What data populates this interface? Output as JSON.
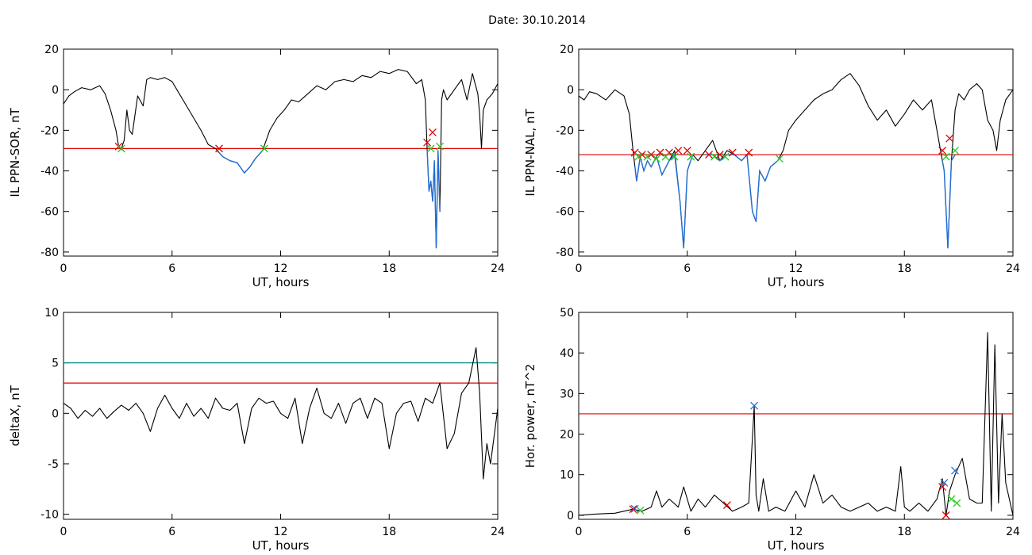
{
  "title": "Date:  30.10.2014",
  "colors": {
    "trace": "#000000",
    "threshold_red": "#e00000",
    "threshold_teal": "#008b8b",
    "segment_blue": "#1f6fd6",
    "marker_red": "#e00000",
    "marker_green": "#22cc22",
    "marker_blue": "#1f6fd6"
  },
  "chart_data": [
    {
      "type": "line",
      "xlabel": "UT, hours",
      "ylabel": "IL PPN-SOR, nT",
      "xlim": [
        0,
        24
      ],
      "ylim": [
        -82,
        20
      ],
      "xticks": [
        0,
        6,
        12,
        18,
        24
      ],
      "yticks": [
        -80,
        -60,
        -40,
        -20,
        0,
        20
      ],
      "x": [
        0,
        0.3,
        0.6,
        1,
        1.5,
        2,
        2.3,
        2.6,
        2.9,
        3.05,
        3.2,
        3.35,
        3.5,
        3.65,
        3.8,
        4.1,
        4.4,
        4.6,
        4.8,
        5.2,
        5.6,
        6,
        6.4,
        6.8,
        7.2,
        7.6,
        8,
        8.4,
        8.8,
        9.2,
        9.6,
        10,
        10.3,
        10.6,
        11,
        11.4,
        11.8,
        12.2,
        12.6,
        13,
        13.5,
        14,
        14.5,
        15,
        15.5,
        16,
        16.5,
        17,
        17.5,
        18,
        18.5,
        19,
        19.5,
        19.8,
        20,
        20.1,
        20.2,
        20.3,
        20.4,
        20.5,
        20.6,
        20.7,
        20.8,
        20.9,
        21,
        21.2,
        21.6,
        22,
        22.3,
        22.6,
        22.9,
        23,
        23.1,
        23.2,
        23.4,
        23.7,
        24
      ],
      "y": [
        -7,
        -3,
        -1,
        1,
        0,
        2,
        -2,
        -10,
        -20,
        -28,
        -29,
        -25,
        -10,
        -20,
        -22,
        -3,
        -8,
        5,
        6,
        5,
        6,
        4,
        -2,
        -8,
        -14,
        -20,
        -27,
        -29,
        -33,
        -35,
        -36,
        -41,
        -38,
        -34,
        -30,
        -20,
        -14,
        -10,
        -5,
        -6,
        -2,
        2,
        0,
        4,
        5,
        4,
        7,
        6,
        9,
        8,
        10,
        9,
        3,
        5,
        -5,
        -30,
        -50,
        -45,
        -55,
        -35,
        -78,
        -30,
        -60,
        -5,
        0,
        -5,
        0,
        5,
        -5,
        8,
        -2,
        -12,
        -29,
        -10,
        -5,
        -2,
        3
      ],
      "threshold": -29,
      "markers": [
        {
          "x": 3.05,
          "y": -28,
          "color": "red"
        },
        {
          "x": 3.2,
          "y": -29,
          "color": "green"
        },
        {
          "x": 8.6,
          "y": -29,
          "color": "red"
        },
        {
          "x": 11.1,
          "y": -29,
          "color": "green"
        },
        {
          "x": 20.1,
          "y": -26,
          "color": "red"
        },
        {
          "x": 20.4,
          "y": -21,
          "color": "red"
        },
        {
          "x": 20.3,
          "y": -29,
          "color": "green"
        },
        {
          "x": 20.8,
          "y": -28,
          "color": "green"
        }
      ],
      "blue_segments": [
        [
          8.6,
          11.1
        ],
        [
          20.1,
          20.8
        ]
      ]
    },
    {
      "type": "line",
      "xlabel": "UT, hours",
      "ylabel": "IL PPN-NAL, nT",
      "xlim": [
        0,
        24
      ],
      "ylim": [
        -82,
        20
      ],
      "xticks": [
        0,
        6,
        12,
        18,
        24
      ],
      "yticks": [
        -80,
        -60,
        -40,
        -20,
        0,
        20
      ],
      "x": [
        0,
        0.3,
        0.6,
        1,
        1.5,
        2,
        2.5,
        2.8,
        3,
        3.2,
        3.4,
        3.6,
        3.8,
        4,
        4.3,
        4.6,
        5,
        5.3,
        5.6,
        5.8,
        6,
        6.3,
        6.6,
        7,
        7.4,
        7.8,
        8.2,
        8.6,
        9,
        9.3,
        9.6,
        9.8,
        10,
        10.3,
        10.6,
        11,
        11.3,
        11.6,
        12,
        12.5,
        13,
        13.5,
        14,
        14.5,
        15,
        15.5,
        16,
        16.5,
        17,
        17.5,
        18,
        18.5,
        19,
        19.5,
        20,
        20.2,
        20.4,
        20.6,
        20.8,
        21,
        21.3,
        21.6,
        22,
        22.3,
        22.6,
        22.9,
        23.1,
        23.3,
        23.6,
        24
      ],
      "y": [
        -3,
        -5,
        -1,
        -2,
        -5,
        0,
        -3,
        -12,
        -30,
        -45,
        -33,
        -40,
        -35,
        -38,
        -33,
        -42,
        -35,
        -30,
        -55,
        -78,
        -40,
        -32,
        -35,
        -30,
        -25,
        -35,
        -30,
        -32,
        -35,
        -32,
        -60,
        -65,
        -40,
        -45,
        -38,
        -35,
        -30,
        -20,
        -15,
        -10,
        -5,
        -2,
        0,
        5,
        8,
        2,
        -8,
        -15,
        -10,
        -18,
        -12,
        -5,
        -10,
        -5,
        -30,
        -40,
        -78,
        -35,
        -10,
        -2,
        -5,
        0,
        3,
        0,
        -15,
        -20,
        -30,
        -15,
        -5,
        0
      ],
      "threshold": -32,
      "markers": [
        {
          "x": 3.1,
          "y": -31,
          "color": "red"
        },
        {
          "x": 3.5,
          "y": -32,
          "color": "red"
        },
        {
          "x": 4.0,
          "y": -32,
          "color": "red"
        },
        {
          "x": 4.5,
          "y": -31,
          "color": "red"
        },
        {
          "x": 5.0,
          "y": -31,
          "color": "red"
        },
        {
          "x": 5.5,
          "y": -30,
          "color": "red"
        },
        {
          "x": 6.0,
          "y": -30,
          "color": "red"
        },
        {
          "x": 7.2,
          "y": -32,
          "color": "red"
        },
        {
          "x": 7.8,
          "y": -32,
          "color": "red"
        },
        {
          "x": 8.5,
          "y": -31,
          "color": "red"
        },
        {
          "x": 9.4,
          "y": -31,
          "color": "red"
        },
        {
          "x": 20.1,
          "y": -30,
          "color": "red"
        },
        {
          "x": 20.5,
          "y": -24,
          "color": "red"
        },
        {
          "x": 3.3,
          "y": -33,
          "color": "green"
        },
        {
          "x": 3.8,
          "y": -33,
          "color": "green"
        },
        {
          "x": 4.3,
          "y": -34,
          "color": "green"
        },
        {
          "x": 4.8,
          "y": -33,
          "color": "green"
        },
        {
          "x": 5.3,
          "y": -33,
          "color": "green"
        },
        {
          "x": 6.2,
          "y": -33,
          "color": "green"
        },
        {
          "x": 7.5,
          "y": -33,
          "color": "green"
        },
        {
          "x": 8.1,
          "y": -33,
          "color": "green"
        },
        {
          "x": 11.1,
          "y": -34,
          "color": "green"
        },
        {
          "x": 20.3,
          "y": -33,
          "color": "green"
        },
        {
          "x": 20.8,
          "y": -30,
          "color": "green"
        }
      ],
      "blue_segments": [
        [
          3.1,
          6.3
        ],
        [
          7.0,
          9.5
        ],
        [
          9.5,
          11.1
        ],
        [
          20.1,
          20.8
        ]
      ]
    },
    {
      "type": "line",
      "xlabel": "UT, hours",
      "ylabel": "deltaX, nT",
      "xlim": [
        0,
        24
      ],
      "ylim": [
        -10.5,
        10
      ],
      "xticks": [
        0,
        6,
        12,
        18,
        24
      ],
      "yticks": [
        -10,
        -5,
        0,
        5,
        10
      ],
      "x": [
        0,
        0.4,
        0.8,
        1.2,
        1.6,
        2,
        2.4,
        2.8,
        3.2,
        3.6,
        4,
        4.4,
        4.8,
        5.2,
        5.6,
        6,
        6.4,
        6.8,
        7.2,
        7.6,
        8,
        8.4,
        8.8,
        9.2,
        9.6,
        10,
        10.4,
        10.8,
        11.2,
        11.6,
        12,
        12.4,
        12.8,
        13.2,
        13.6,
        14,
        14.4,
        14.8,
        15.2,
        15.6,
        16,
        16.4,
        16.8,
        17.2,
        17.6,
        18,
        18.4,
        18.8,
        19.2,
        19.6,
        20,
        20.4,
        20.8,
        21.2,
        21.6,
        22,
        22.4,
        22.8,
        23,
        23.2,
        23.4,
        23.6,
        24
      ],
      "y": [
        1,
        0.5,
        -0.5,
        0.3,
        -0.3,
        0.5,
        -0.5,
        0.2,
        0.8,
        0.3,
        1,
        0,
        -1.8,
        0.5,
        1.8,
        0.5,
        -0.5,
        1,
        -0.3,
        0.5,
        -0.5,
        1.5,
        0.5,
        0.3,
        1,
        -3,
        0.5,
        1.5,
        1,
        1.2,
        0,
        -0.5,
        1.5,
        -3,
        0.5,
        2.5,
        0,
        -0.5,
        1,
        -1,
        1,
        1.5,
        -0.5,
        1.5,
        1,
        -3.5,
        0,
        1,
        1.2,
        -0.8,
        1.5,
        1,
        3,
        -3.5,
        -2,
        2,
        3,
        6.5,
        2,
        -6.5,
        -3,
        -5,
        0.5
      ],
      "thresholds": [
        {
          "y": 5,
          "color": "teal"
        },
        {
          "y": 3,
          "color": "red"
        }
      ]
    },
    {
      "type": "line",
      "xlabel": "UT, hours",
      "ylabel": "Hor. power, nT^2",
      "xlim": [
        0,
        24
      ],
      "ylim": [
        -1,
        50
      ],
      "xticks": [
        0,
        6,
        12,
        18,
        24
      ],
      "yticks": [
        0,
        10,
        20,
        30,
        40,
        50
      ],
      "x": [
        0,
        1,
        2,
        3,
        3.5,
        4,
        4.3,
        4.6,
        5,
        5.5,
        5.8,
        6.2,
        6.6,
        7,
        7.5,
        8,
        8.5,
        9,
        9.4,
        9.7,
        9.8,
        9.95,
        10.2,
        10.5,
        10.9,
        11.4,
        12,
        12.5,
        13,
        13.5,
        14,
        14.5,
        15,
        15.5,
        16,
        16.5,
        17,
        17.5,
        17.8,
        18,
        18.3,
        18.8,
        19.3,
        19.8,
        20.1,
        20.3,
        20.5,
        20.8,
        21.2,
        21.6,
        22,
        22.3,
        22.6,
        22.8,
        23,
        23.2,
        23.4,
        23.6,
        24
      ],
      "y": [
        0,
        0.3,
        0.5,
        1.5,
        1,
        2,
        6,
        2,
        4,
        2,
        7,
        1,
        4,
        2,
        5,
        3,
        1,
        2,
        3,
        27,
        5,
        1,
        9,
        1,
        2,
        1,
        6,
        2,
        10,
        3,
        5,
        2,
        1,
        2,
        3,
        1,
        2,
        1,
        12,
        2,
        1,
        3,
        1,
        4,
        9,
        0,
        6,
        10,
        14,
        4,
        3,
        3,
        45,
        1,
        42,
        3,
        25,
        8,
        0
      ],
      "threshold": 25,
      "markers": [
        {
          "x": 3.0,
          "y": 1.5,
          "color": "red"
        },
        {
          "x": 3.1,
          "y": 1.6,
          "color": "blue"
        },
        {
          "x": 3.4,
          "y": 1.2,
          "color": "green"
        },
        {
          "x": 8.2,
          "y": 2.5,
          "color": "red"
        },
        {
          "x": 9.7,
          "y": 27,
          "color": "blue"
        },
        {
          "x": 20.1,
          "y": 7,
          "color": "red"
        },
        {
          "x": 20.2,
          "y": 8,
          "color": "blue"
        },
        {
          "x": 20.3,
          "y": 0,
          "color": "red"
        },
        {
          "x": 20.6,
          "y": 4,
          "color": "green"
        },
        {
          "x": 20.8,
          "y": 11,
          "color": "blue"
        },
        {
          "x": 20.9,
          "y": 3,
          "color": "green"
        }
      ]
    }
  ]
}
